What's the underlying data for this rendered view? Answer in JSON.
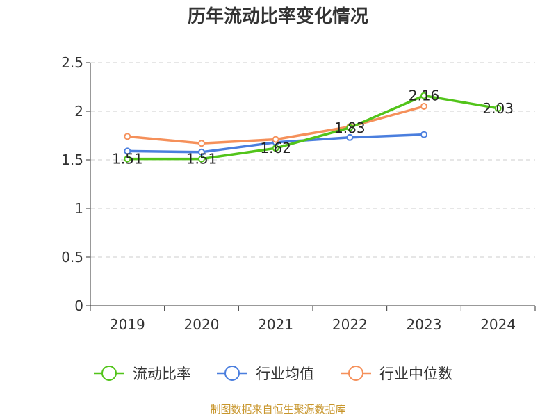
{
  "chart_data": {
    "type": "line",
    "title": "历年流动比率变化情况",
    "categories": [
      "2019",
      "2020",
      "2021",
      "2022",
      "2023",
      "2024"
    ],
    "ylim": [
      0,
      2.5
    ],
    "yticks": [
      "0",
      "0.5",
      "1",
      "1.5",
      "2",
      "2.5"
    ],
    "grid": true,
    "legend_position": "bottom",
    "series": [
      {
        "name": "流动比率",
        "color": "#52c41a",
        "values": [
          1.51,
          1.51,
          1.62,
          1.83,
          2.16,
          2.03
        ],
        "labels": [
          "1.51",
          "1.51",
          "1.62",
          "1.83",
          "2.16",
          "2.03"
        ]
      },
      {
        "name": "行业均值",
        "color": "#4a7ede",
        "values": [
          1.59,
          1.58,
          1.68,
          1.73,
          1.76,
          null
        ]
      },
      {
        "name": "行业中位数",
        "color": "#f5905a",
        "values": [
          1.74,
          1.67,
          1.71,
          1.84,
          2.05,
          null
        ]
      }
    ],
    "source": "制图数据来自恒生聚源数据库"
  }
}
